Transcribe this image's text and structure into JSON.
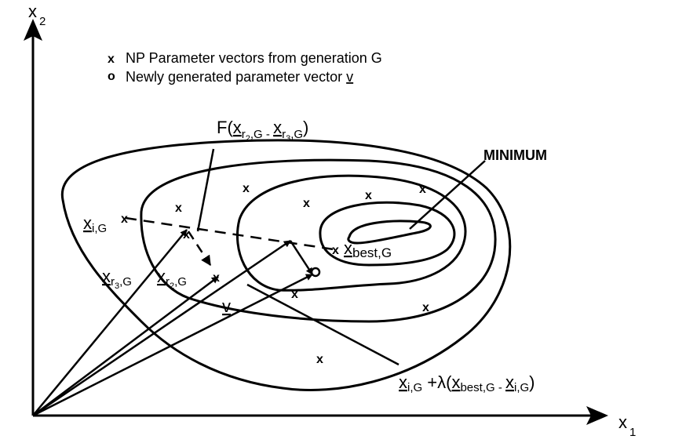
{
  "axes": {
    "x": {
      "letter": "x",
      "index": "1"
    },
    "y": {
      "letter": "x",
      "index": "2"
    }
  },
  "legend": {
    "item1": {
      "marker": "x",
      "text": "NP Parameter vectors from generation G"
    },
    "item2": {
      "marker": "o",
      "text": "Newly generated parameter vector ",
      "vector": "v"
    }
  },
  "labels": {
    "f": {
      "prefix": "F(",
      "x": "x",
      "r2": "r",
      "r2i": "2",
      "r2g": ",G",
      "minus": " - ",
      "r3": "r",
      "r3i": "3",
      "r3g": ",G",
      "close": ")"
    },
    "minimum": "MINIMUM",
    "xi": {
      "x": "x",
      "sub": "i,G"
    },
    "xr3": {
      "x": "x",
      "r": "r",
      "ri": "3",
      "g": ",G"
    },
    "xr2": {
      "x": "x",
      "r": "r",
      "ri": "2",
      "g": ",G"
    },
    "v": "v",
    "xbest": {
      "x": "x",
      "sub": "best,G"
    },
    "formula": {
      "x1": "x",
      "s1": "i,G",
      "plus": " +",
      "lambda": "λ",
      "open": "(",
      "x2": "x",
      "s2": "best,G",
      "minus": " - ",
      "x3": "x",
      "s3": "i,G",
      "close": ")"
    }
  },
  "population_marker": "x"
}
